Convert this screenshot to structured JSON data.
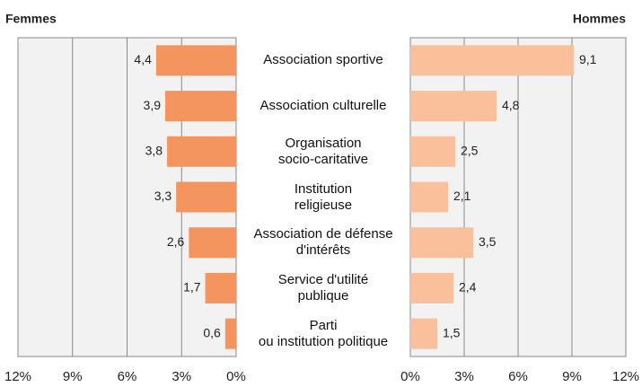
{
  "chart_data": [
    {
      "type": "bar",
      "orientation": "horizontal",
      "reversed": true,
      "title": "Femmes",
      "categories": [
        "Association sportive",
        "Association culturelle",
        "Organisation\nsocio-caritative",
        "Institution\nreligieuse",
        "Association de défense\nd'intérêts",
        "Service d'utilité\npublique",
        "Parti\nou institution politique"
      ],
      "values": [
        4.4,
        3.9,
        3.8,
        3.3,
        2.6,
        1.7,
        0.6
      ],
      "value_labels": [
        "4,4",
        "3,9",
        "3,8",
        "3,3",
        "2,6",
        "1,7",
        "0,6"
      ],
      "color": "#f4955f",
      "xlim": [
        0,
        12
      ],
      "xticks": [
        {
          "value": 0,
          "label": "0%"
        },
        {
          "value": 3,
          "label": "3%"
        },
        {
          "value": 6,
          "label": "6%"
        },
        {
          "value": 9,
          "label": "9%"
        },
        {
          "value": 12,
          "label": "12%"
        }
      ],
      "grid": true
    },
    {
      "type": "bar",
      "orientation": "horizontal",
      "reversed": false,
      "title": "Hommes",
      "values": [
        9.1,
        4.8,
        2.5,
        2.1,
        3.5,
        2.4,
        1.5
      ],
      "value_labels": [
        "9,1",
        "4,8",
        "2,5",
        "2,1",
        "3,5",
        "2,4",
        "1,5"
      ],
      "color": "#f9c09b",
      "xlim": [
        0,
        12
      ],
      "xticks": [
        {
          "value": 0,
          "label": "0%"
        },
        {
          "value": 3,
          "label": "3%"
        },
        {
          "value": 6,
          "label": "6%"
        },
        {
          "value": 9,
          "label": "9%"
        },
        {
          "value": 12,
          "label": "12%"
        }
      ],
      "grid": true
    }
  ]
}
